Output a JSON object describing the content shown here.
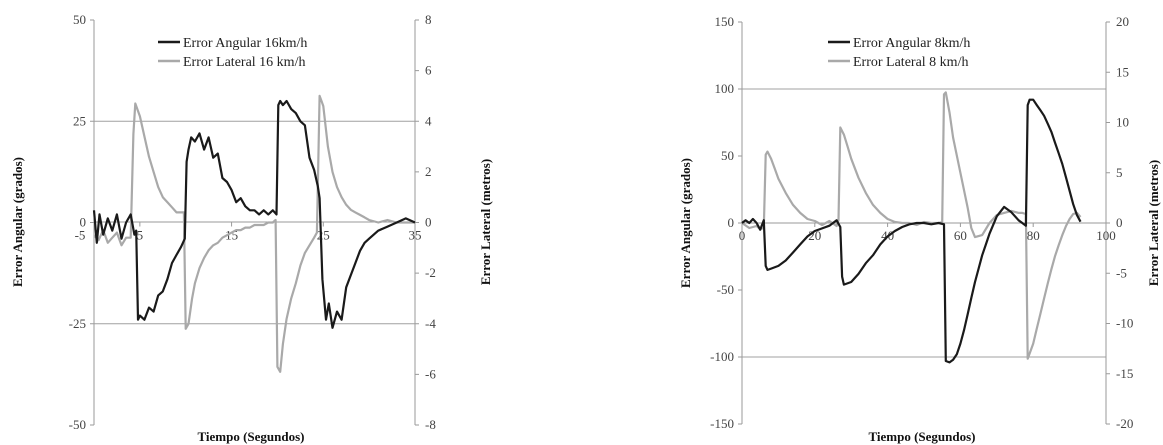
{
  "chart_data": [
    {
      "type": "line",
      "xlabel": "Tiempo (Segundos)",
      "ylabel": "Error  Angular (grados)",
      "y2label": "Error  Lateral (metros)",
      "xlim": [
        0,
        35
      ],
      "ylim": [
        -50,
        50
      ],
      "y2lim": [
        -8,
        8
      ],
      "xticks": [
        5,
        15,
        25,
        35
      ],
      "xtick_labels": [
        "5",
        "15",
        "25",
        "35"
      ],
      "x_extra_label": "-5",
      "yticks": [
        -50,
        -25,
        0,
        25,
        50
      ],
      "ytick_labels": [
        "-50",
        "-25",
        "0",
        "25",
        "50"
      ],
      "y2ticks": [
        -8,
        -6,
        -4,
        -2,
        0,
        2,
        4,
        6,
        8
      ],
      "y2tick_labels": [
        "-8",
        "-6",
        "-4",
        "-2",
        "0",
        "2",
        "4",
        "6",
        "8"
      ],
      "grid_y": [
        -25,
        25
      ],
      "legend_position": "top-center",
      "series": [
        {
          "name": "Error Angular 16km/h",
          "axis": "left",
          "color": "#1a1a1a",
          "x": [
            0,
            0.3,
            0.6,
            1,
            1.5,
            2,
            2.5,
            3,
            3.5,
            4,
            4.4,
            4.6,
            4.8,
            5,
            5.5,
            6,
            6.5,
            7,
            7.5,
            8,
            8.5,
            9,
            9.5,
            9.9,
            10.1,
            10.3,
            10.6,
            11,
            11.5,
            12,
            12.5,
            13,
            13.5,
            14,
            14.5,
            15,
            15.5,
            16,
            16.5,
            17,
            17.5,
            18,
            18.5,
            19,
            19.5,
            19.9,
            20.1,
            20.3,
            20.6,
            21,
            21.5,
            22,
            22.5,
            23,
            23.5,
            24,
            24.4,
            24.6,
            24.9,
            25.1,
            25.3,
            25.6,
            26,
            26.5,
            27,
            27.5,
            28,
            28.5,
            29,
            29.5,
            30,
            31,
            32,
            33,
            34,
            35
          ],
          "y": [
            3,
            -5,
            2,
            -3,
            1,
            -2,
            2,
            -4,
            0,
            2,
            -3,
            -2,
            -24,
            -23,
            -24,
            -21,
            -22,
            -18,
            -17,
            -14,
            -10,
            -8,
            -6,
            -4,
            15,
            18,
            21,
            20,
            22,
            18,
            21,
            16,
            17,
            11,
            10,
            8,
            5,
            6,
            4,
            3,
            3,
            2,
            3,
            2,
            3,
            2,
            29,
            30,
            29,
            30,
            28,
            27,
            25,
            24,
            16,
            13,
            9,
            6,
            -14,
            -19,
            -24,
            -20,
            -26,
            -22,
            -24,
            -16,
            -13,
            -10,
            -7,
            -5,
            -4,
            -2,
            -1,
            0,
            1,
            0
          ]
        },
        {
          "name": "Error Lateral 16 km/h",
          "axis": "right",
          "color": "#a9a9a9",
          "x": [
            0,
            0.5,
            1,
            1.5,
            2,
            2.5,
            3,
            3.5,
            4,
            4.3,
            4.5,
            5,
            5.5,
            6,
            6.5,
            7,
            7.5,
            8,
            8.5,
            9,
            9.5,
            9.8,
            10,
            10.3,
            10.7,
            11,
            11.5,
            12,
            12.5,
            13,
            13.5,
            14,
            14.5,
            15,
            15.5,
            16,
            16.5,
            17,
            17.5,
            18,
            18.5,
            19,
            19.5,
            19.8,
            20,
            20.3,
            20.6,
            21,
            21.5,
            22,
            22.5,
            23,
            23.5,
            24,
            24.3,
            24.6,
            24.8,
            25,
            25.5,
            26,
            26.5,
            27,
            27.5,
            28,
            28.5,
            29,
            29.5,
            30,
            31,
            32,
            33,
            34,
            35
          ],
          "y": [
            -0.5,
            -0.7,
            -0.3,
            -0.8,
            -0.6,
            -0.4,
            -0.9,
            -0.6,
            -0.6,
            3.5,
            4.7,
            4.2,
            3.4,
            2.6,
            2.0,
            1.4,
            1.0,
            0.8,
            0.6,
            0.4,
            0.4,
            0.4,
            -4.2,
            -4.0,
            -3.0,
            -2.4,
            -1.8,
            -1.4,
            -1.1,
            -0.9,
            -0.8,
            -0.6,
            -0.5,
            -0.4,
            -0.3,
            -0.3,
            -0.2,
            -0.2,
            -0.1,
            -0.1,
            -0.1,
            0,
            0,
            0.1,
            -5.7,
            -5.9,
            -4.8,
            -3.8,
            -3.0,
            -2.4,
            -1.7,
            -1.2,
            -0.9,
            -0.6,
            -0.4,
            5.0,
            4.8,
            4.6,
            3.0,
            2.0,
            1.4,
            1.0,
            0.7,
            0.5,
            0.4,
            0.3,
            0.2,
            0.1,
            0,
            0.1,
            0,
            0,
            0
          ]
        }
      ]
    },
    {
      "type": "line",
      "xlabel": "Tiempo (Segundos)",
      "ylabel": "Error  Angular (grados)",
      "y2label": "Error  Lateral (metros)",
      "xlim": [
        0,
        100
      ],
      "ylim": [
        -150,
        150
      ],
      "y2lim": [
        -20,
        20
      ],
      "xticks": [
        0,
        20,
        40,
        60,
        80,
        100
      ],
      "xtick_labels": [
        "0",
        "20",
        "40",
        "60",
        "80",
        "100"
      ],
      "yticks": [
        -150,
        -100,
        -50,
        0,
        50,
        100,
        150
      ],
      "ytick_labels": [
        "-150",
        "-100",
        "-50",
        "0",
        "50",
        "100",
        "150"
      ],
      "y2ticks": [
        -20,
        -15,
        -10,
        -5,
        0,
        5,
        10,
        15,
        20
      ],
      "y2tick_labels": [
        "-20",
        "-15",
        "-10",
        "-5",
        "0",
        "5",
        "10",
        "15",
        "20"
      ],
      "grid_y": [
        -100,
        100
      ],
      "legend_position": "top-center",
      "series": [
        {
          "name": "Error Angular 8km/h",
          "axis": "left",
          "color": "#1a1a1a",
          "x": [
            0,
            1,
            2,
            3,
            4,
            5,
            6,
            6.5,
            7,
            8,
            10,
            12,
            14,
            16,
            18,
            20,
            22,
            24,
            26,
            27,
            27.5,
            28,
            30,
            32,
            34,
            36,
            38,
            40,
            42,
            44,
            46,
            48,
            50,
            52,
            54,
            55.5,
            56,
            57,
            58,
            59,
            60,
            61,
            62,
            63,
            64,
            65,
            66,
            67,
            68,
            70,
            72,
            74,
            76,
            77,
            78,
            78.5,
            79,
            80,
            81,
            82,
            83,
            84,
            85,
            86,
            87,
            88,
            89,
            90,
            91,
            92,
            93
          ],
          "y": [
            0,
            2,
            0,
            3,
            0,
            -5,
            2,
            -32,
            -35,
            -34,
            -32,
            -28,
            -22,
            -16,
            -10,
            -6,
            -4,
            -2,
            2,
            -3,
            -40,
            -46,
            -44,
            -38,
            -30,
            -24,
            -16,
            -10,
            -6,
            -3,
            -1,
            0,
            0,
            -1,
            0,
            -1,
            -103,
            -104,
            -102,
            -98,
            -90,
            -80,
            -68,
            -56,
            -44,
            -34,
            -24,
            -16,
            -8,
            5,
            12,
            8,
            2,
            0,
            -2,
            88,
            92,
            92,
            88,
            84,
            80,
            74,
            68,
            60,
            52,
            44,
            34,
            24,
            14,
            6,
            1
          ]
        },
        {
          "name": "Error Lateral 8 km/h",
          "axis": "right",
          "color": "#a9a9a9",
          "x": [
            0,
            2,
            4,
            5,
            6,
            6.5,
            7,
            8,
            9,
            10,
            12,
            14,
            16,
            18,
            20,
            22,
            24,
            26,
            26.5,
            27,
            28,
            29,
            30,
            32,
            34,
            36,
            38,
            40,
            42,
            44,
            46,
            48,
            50,
            52,
            54,
            55,
            55.5,
            56,
            57,
            58,
            60,
            62,
            63,
            64,
            66,
            68,
            70,
            72,
            74,
            76,
            77,
            78,
            78.5,
            79,
            80,
            81,
            82,
            83,
            84,
            85,
            86,
            87,
            88,
            89,
            90,
            91,
            92,
            93
          ],
          "y": [
            0,
            -0.5,
            -0.3,
            -0.6,
            -0.5,
            6.8,
            7.1,
            6.4,
            5.4,
            4.4,
            3.0,
            1.8,
            1.0,
            0.4,
            0.2,
            -0.2,
            0.2,
            -0.3,
            0.3,
            9.5,
            8.8,
            7.6,
            6.4,
            4.5,
            3.0,
            1.8,
            1.0,
            0.4,
            0.1,
            0,
            0,
            -0.2,
            0.1,
            0,
            0,
            0.1,
            12.8,
            13.0,
            11.0,
            8.5,
            5.0,
            1.5,
            -0.5,
            -1.4,
            -1.2,
            0,
            0.8,
            1.0,
            1.2,
            1.0,
            1.0,
            0.9,
            -13.5,
            -13.0,
            -12.0,
            -10.5,
            -9.0,
            -7.5,
            -6.0,
            -4.6,
            -3.3,
            -2.2,
            -1.2,
            -0.3,
            0.4,
            0.9,
            1.0,
            0.6
          ]
        }
      ]
    }
  ]
}
